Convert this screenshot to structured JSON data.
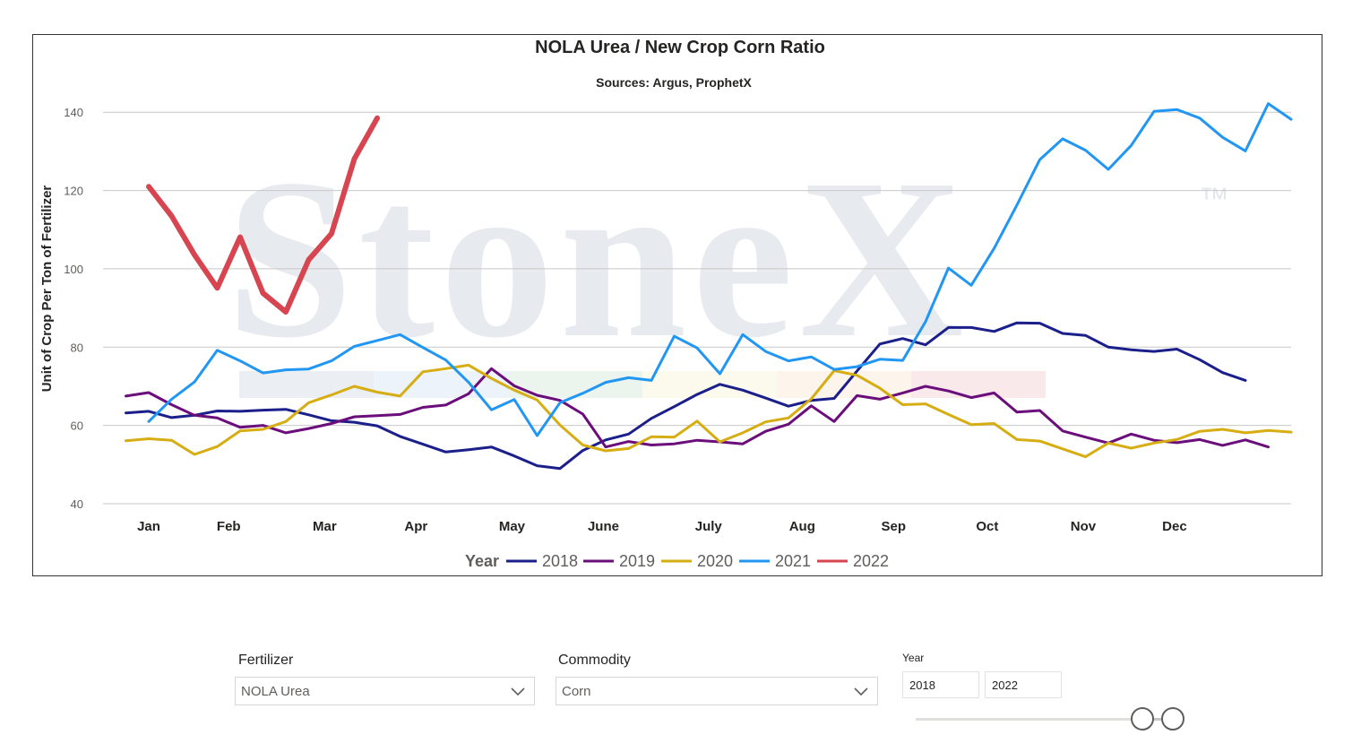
{
  "chart_data": {
    "type": "line",
    "title": "NOLA Urea / New Crop Corn Ratio",
    "subtitle": "Sources: Argus, ProphetX",
    "ylabel": "Unit of Crop Per Ton of Fertilizer",
    "xlabel": "",
    "ylim": [
      40,
      146
    ],
    "yticks": [
      40,
      60,
      80,
      100,
      120,
      140
    ],
    "grid": true,
    "watermark": "StoneX",
    "watermark_tm": "™",
    "legend_title": "Year",
    "legend_position": "bottom",
    "months": [
      "Jan",
      "Feb",
      "Mar",
      "Apr",
      "May",
      "June",
      "July",
      "Aug",
      "Sep",
      "Oct",
      "Nov",
      "Dec"
    ],
    "month_weeks": [
      2,
      5.5,
      9.7,
      13.7,
      17.9,
      21.9,
      26.5,
      30.6,
      34.6,
      38.7,
      42.9,
      46.9
    ],
    "x_week_range": [
      0,
      52
    ],
    "series": [
      {
        "name": "2018",
        "color": "#1b1f8a",
        "width": 3,
        "x": [
          1,
          2,
          3,
          4,
          5,
          6,
          7,
          8,
          9,
          10,
          11,
          12,
          13,
          14,
          15,
          16,
          17,
          18,
          19,
          20,
          21,
          22,
          23,
          24,
          25,
          26,
          27,
          28,
          29,
          30,
          31,
          32,
          33,
          34,
          35,
          36,
          37,
          38,
          39,
          40,
          41,
          42,
          43,
          44,
          45,
          46,
          47,
          48,
          49,
          50
        ],
        "values": [
          63.2,
          63.6,
          62,
          62.6,
          63.7,
          63.6,
          63.9,
          64.1,
          62.7,
          61.2,
          60.8,
          59.9,
          57.2,
          55.2,
          53.2,
          53.8,
          54.5,
          52.2,
          49.7,
          49.0,
          53.6,
          56.3,
          57.8,
          61.8,
          64.8,
          67.9,
          70.5,
          69,
          67,
          64.9,
          66.4,
          66.9,
          73.9,
          80.8,
          82.2,
          80.6,
          85.0,
          85.0,
          84.0,
          86.2,
          86.1,
          83.5,
          83.0,
          80.0,
          79.3,
          78.9,
          79.5,
          76.8,
          73.5,
          71.5
        ]
      },
      {
        "name": "2019",
        "color": "#6b0d7a",
        "width": 3,
        "x": [
          1,
          2,
          3,
          4,
          5,
          6,
          7,
          8,
          9,
          10,
          11,
          12,
          13,
          14,
          15,
          16,
          17,
          18,
          19,
          20,
          21,
          22,
          23,
          24,
          25,
          26,
          27,
          28,
          29,
          30,
          31,
          32,
          33,
          34,
          35,
          36,
          37,
          38,
          39,
          40,
          41,
          42,
          43,
          44,
          45,
          46,
          47,
          48,
          49,
          50,
          51
        ],
        "values": [
          67.5,
          68.4,
          65.3,
          62.6,
          61.9,
          59.5,
          60.0,
          58.1,
          59.2,
          60.5,
          62.2,
          62.5,
          62.8,
          64.6,
          65.2,
          68.1,
          74.5,
          70.1,
          67.7,
          66.4,
          62.9,
          54.5,
          55.9,
          55.0,
          55.3,
          56.2,
          55.8,
          55.3,
          58.5,
          60.3,
          65.0,
          61.0,
          67.6,
          66.7,
          68.3,
          70.0,
          68.8,
          67.1,
          68.3,
          63.4,
          63.8,
          58.6,
          57.0,
          55.5,
          57.8,
          56.2,
          55.6,
          56.4,
          54.9,
          56.3,
          54.5
        ]
      },
      {
        "name": "2020",
        "color": "#d6ad13",
        "width": 3,
        "x": [
          1,
          2,
          3,
          4,
          5,
          6,
          7,
          8,
          9,
          10,
          11,
          12,
          13,
          14,
          15,
          16,
          17,
          18,
          19,
          20,
          21,
          22,
          23,
          24,
          25,
          26,
          27,
          28,
          29,
          30,
          31,
          32,
          33,
          34,
          35,
          36,
          37,
          38,
          39,
          40,
          41,
          42,
          43,
          44,
          45,
          46,
          47,
          48,
          49,
          50,
          51,
          52
        ],
        "values": [
          56.1,
          56.6,
          56.2,
          52.6,
          54.6,
          58.6,
          59.0,
          61.0,
          65.8,
          67.8,
          70.0,
          68.5,
          67.5,
          73.7,
          74.5,
          75.4,
          72.0,
          69.0,
          66.5,
          60.1,
          55.0,
          53.5,
          54.1,
          57.1,
          57.0,
          61.1,
          55.8,
          58.1,
          60.9,
          61.9,
          66.8,
          74.0,
          72.8,
          69.5,
          65.3,
          65.5,
          62.8,
          60.2,
          60.5,
          56.4,
          56.0,
          54.0,
          52.0,
          55.5,
          54.2,
          55.5,
          56.4,
          58.5,
          59.0,
          58.1,
          58.7,
          58.3
        ]
      },
      {
        "name": "2021",
        "color": "#2196f3",
        "width": 3,
        "x": [
          2,
          3,
          4,
          5,
          6,
          7,
          8,
          9,
          10,
          11,
          12,
          13,
          14,
          15,
          16,
          17,
          18,
          19,
          20,
          21,
          22,
          23,
          24,
          25,
          26,
          27,
          28,
          29,
          30,
          31,
          32,
          33,
          34,
          35,
          36,
          37,
          38,
          39,
          40,
          41,
          42,
          43,
          44,
          45,
          46,
          47,
          48,
          49,
          50,
          51,
          52
        ],
        "values": [
          61.0,
          66.7,
          71.1,
          79.2,
          76.5,
          73.4,
          74.2,
          74.4,
          76.5,
          80.2,
          81.7,
          83.2,
          79.9,
          76.7,
          71.0,
          64.0,
          66.6,
          57.4,
          65.8,
          68.2,
          71.0,
          72.2,
          71.5,
          82.8,
          79.8,
          73.2,
          83.2,
          78.9,
          76.5,
          77.5,
          74.3,
          75.0,
          76.9,
          76.6,
          86.5,
          100.2,
          95.8,
          105.2,
          116.3,
          127.9,
          133.2,
          130.3,
          125.4,
          131.5,
          140.2,
          140.7,
          138.5,
          133.6,
          130.1,
          142.2,
          138.2
        ]
      },
      {
        "name": "2022",
        "color": "#d64550",
        "width": 6,
        "x": [
          2,
          3,
          4,
          5,
          6,
          7,
          8,
          9,
          10,
          11,
          12
        ],
        "values": [
          121.0,
          113.5,
          103.6,
          95.1,
          108.1,
          93.8,
          89.0,
          102.3,
          109.0,
          128.1,
          138.5
        ]
      }
    ]
  },
  "filters": {
    "fertilizer": {
      "label": "Fertilizer",
      "value": "NOLA Urea"
    },
    "commodity": {
      "label": "Commodity",
      "value": "Corn"
    },
    "year": {
      "label": "Year",
      "from": "2018",
      "to": "2022"
    }
  },
  "colors": {
    "grid": "#c8c8c8",
    "axis_text": "#605e5c",
    "slider_knob": "#605e5c"
  }
}
